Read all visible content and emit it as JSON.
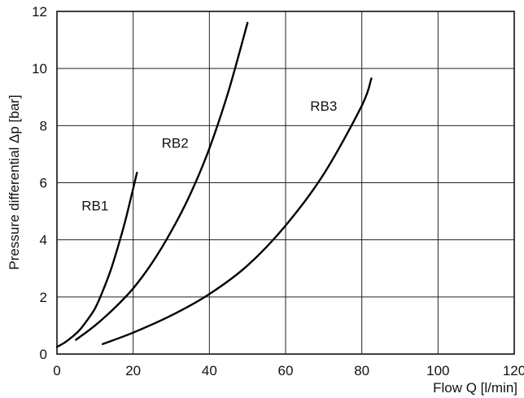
{
  "chart_data": {
    "type": "line",
    "title": "",
    "xlabel": "Flow Q [l/min]",
    "ylabel": "Pressure differential Δp [bar]",
    "xlim": [
      0,
      120
    ],
    "ylim": [
      0,
      12
    ],
    "xticks": [
      "0",
      "20",
      "40",
      "60",
      "80",
      "100",
      "120"
    ],
    "yticks": [
      "0",
      "2",
      "4",
      "6",
      "8",
      "10",
      "12"
    ],
    "grid": true,
    "series": [
      {
        "name": "RB1",
        "x": [
          0,
          2,
          4,
          6,
          8,
          10,
          12,
          14,
          16,
          18,
          20,
          21
        ],
        "y": [
          0.25,
          0.4,
          0.6,
          0.85,
          1.2,
          1.6,
          2.2,
          2.9,
          3.75,
          4.7,
          5.8,
          6.35
        ]
      },
      {
        "name": "RB2",
        "x": [
          5,
          10,
          15,
          20,
          25,
          30,
          35,
          40,
          45,
          50
        ],
        "y": [
          0.5,
          1.0,
          1.6,
          2.3,
          3.2,
          4.3,
          5.6,
          7.2,
          9.2,
          11.6
        ]
      },
      {
        "name": "RB3",
        "x": [
          12,
          20,
          30,
          40,
          50,
          60,
          70,
          80,
          82.5
        ],
        "y": [
          0.35,
          0.75,
          1.35,
          2.1,
          3.1,
          4.5,
          6.3,
          8.7,
          9.65
        ]
      }
    ]
  }
}
